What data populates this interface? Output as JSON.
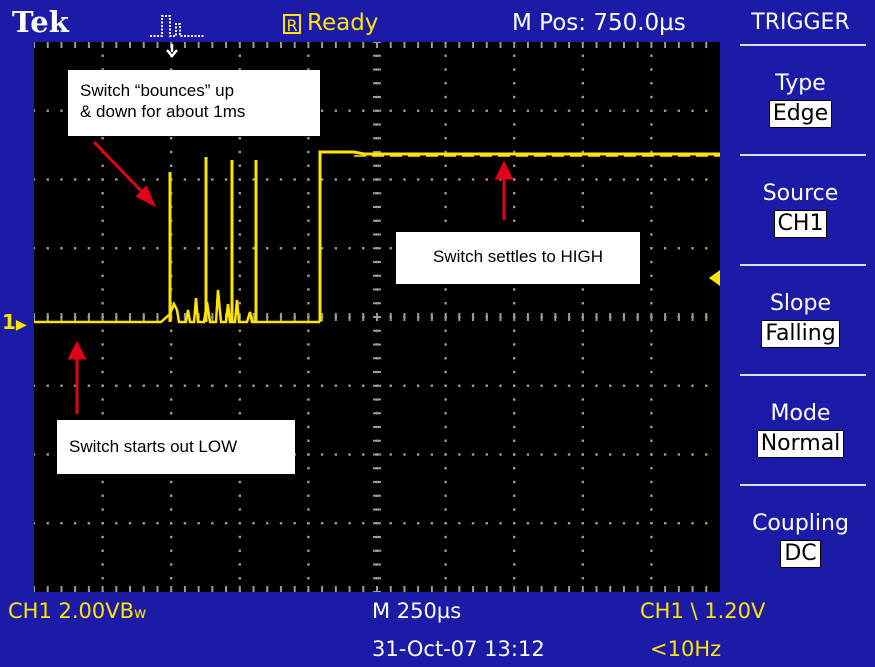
{
  "topbar": {
    "brand": "Tek",
    "run_icon": "pulse-icon",
    "ready_box": "R",
    "status": "Ready",
    "mpos": "M Pos: 750.0µs"
  },
  "menu": {
    "title": "TRIGGER",
    "items": [
      {
        "label": "Type",
        "value": "Edge"
      },
      {
        "label": "Source",
        "value": "CH1"
      },
      {
        "label": "Slope",
        "value": "Falling"
      },
      {
        "label": "Mode",
        "value": "Normal"
      },
      {
        "label": "Coupling",
        "value": "DC"
      }
    ]
  },
  "annotations": {
    "bounce": "Switch “bounces” up\n& down for about 1ms",
    "settles": "Switch settles to HIGH",
    "starts": "Switch starts out LOW"
  },
  "markers": {
    "channel": "1",
    "channel_marker_icon": "channel-1-marker-icon",
    "trigger_pos_icon": "trigger-position-arrow-icon",
    "trigger_level_icon": "trigger-level-arrow-icon"
  },
  "status": {
    "ch1_scale": "CH1  2.00VB",
    "bw_suffix": "w",
    "timebase": "M 250µs",
    "trigger": "CH1 \\ 1.20V",
    "datetime": "31-Oct-07 13:12",
    "freq": "<10Hz"
  },
  "colors": {
    "frame": "#1b1ba8",
    "trace": "#ffe400",
    "screen": "#000000",
    "arrow": "#e0001a"
  }
}
